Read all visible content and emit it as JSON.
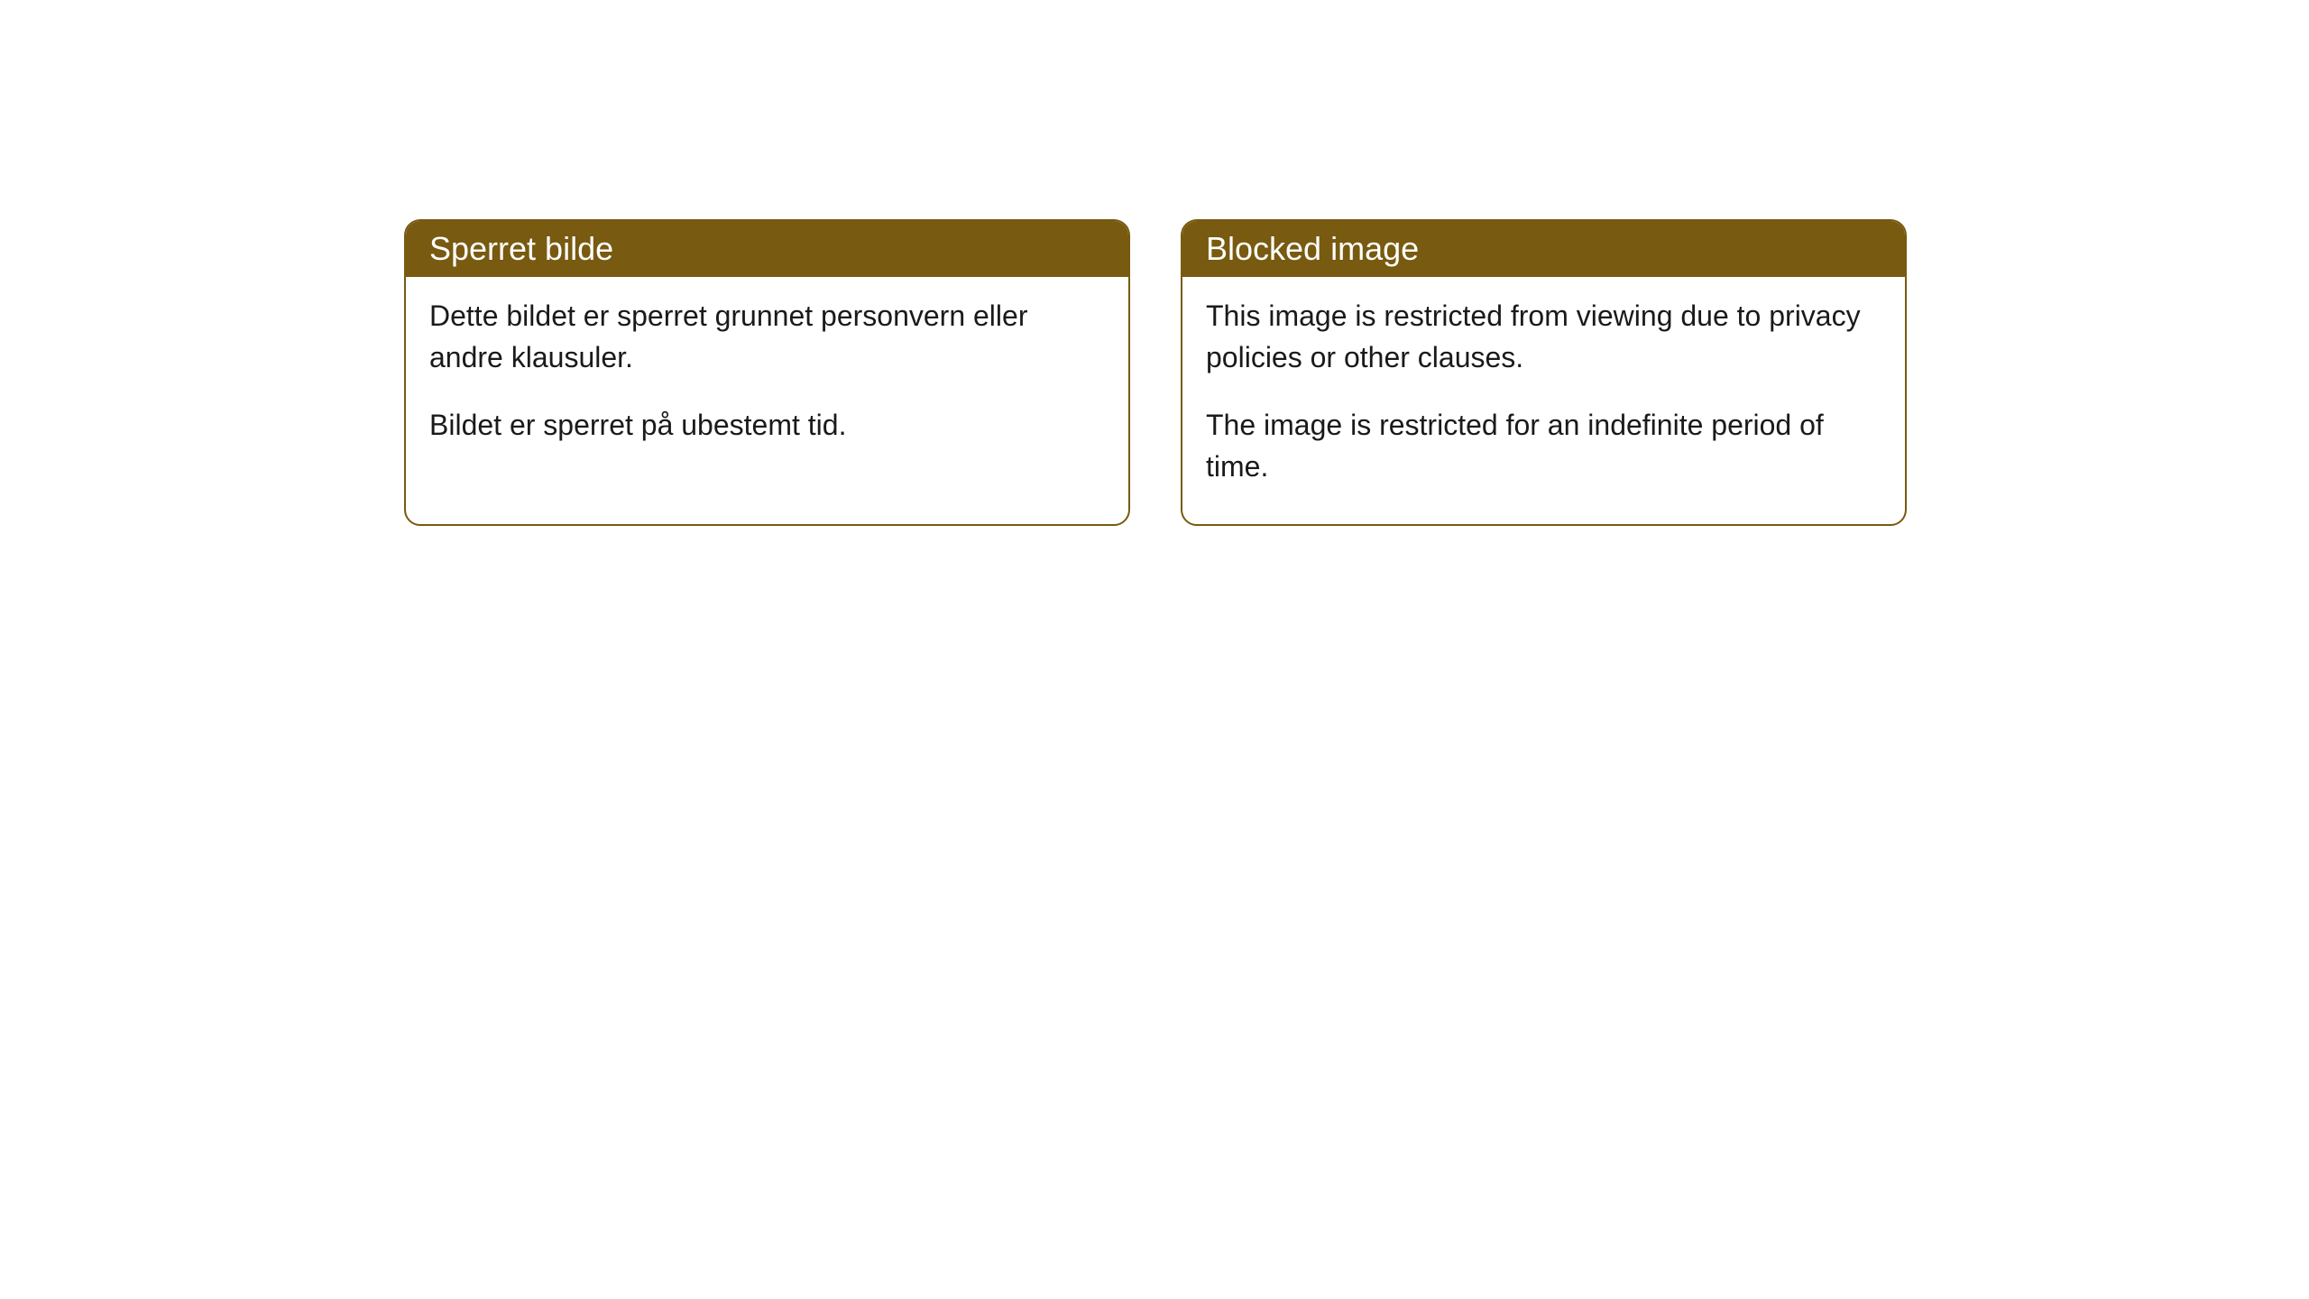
{
  "cards": [
    {
      "title": "Sperret bilde",
      "paragraph1": "Dette bildet er sperret grunnet personvern eller andre klausuler.",
      "paragraph2": "Bildet er sperret på ubestemt tid."
    },
    {
      "title": "Blocked image",
      "paragraph1": "This image is restricted from viewing due to privacy policies or other clauses.",
      "paragraph2": "The image is restricted for an indefinite period of time."
    }
  ],
  "styling": {
    "header_bg_color": "#785a10",
    "header_text_color": "#ffffff",
    "border_color": "#785a10",
    "body_bg_color": "#ffffff",
    "body_text_color": "#1a1a1a",
    "border_radius": 18,
    "header_font_size": 36,
    "body_font_size": 32
  }
}
